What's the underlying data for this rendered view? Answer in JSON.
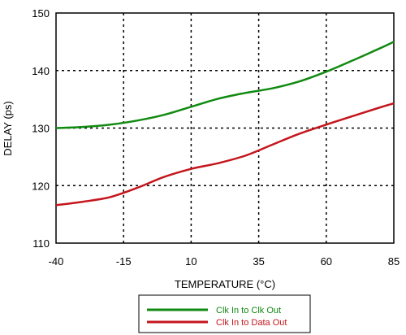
{
  "chart_data": {
    "type": "line",
    "xlabel": "TEMPERATURE (°C)",
    "ylabel": "DELAY (ps)",
    "xlim": [
      -40,
      85
    ],
    "ylim": [
      110,
      150
    ],
    "xticks": [
      -40,
      -15,
      10,
      35,
      60,
      85
    ],
    "yticks": [
      110,
      120,
      130,
      140,
      150
    ],
    "grid": "dotted",
    "legend_position": "bottom-center",
    "series": [
      {
        "name": "Clk In to Clk Out",
        "color": "#118a11",
        "x": [
          -40,
          -30,
          -20,
          -10,
          0,
          10,
          20,
          30,
          40,
          50,
          60,
          70,
          80,
          85
        ],
        "y": [
          130,
          130.2,
          130.6,
          131.3,
          132.3,
          133.7,
          135.1,
          136.1,
          136.9,
          138.1,
          139.8,
          141.8,
          143.9,
          145
        ]
      },
      {
        "name": "Clk In to Data Out",
        "color": "#c4161c",
        "x": [
          -40,
          -30,
          -20,
          -10,
          0,
          10,
          20,
          30,
          40,
          50,
          60,
          70,
          80,
          85
        ],
        "y": [
          116.6,
          117.2,
          118,
          119.6,
          121.5,
          122.9,
          123.9,
          125.2,
          127.1,
          129.0,
          130.6,
          132.1,
          133.6,
          134.3
        ]
      }
    ]
  }
}
